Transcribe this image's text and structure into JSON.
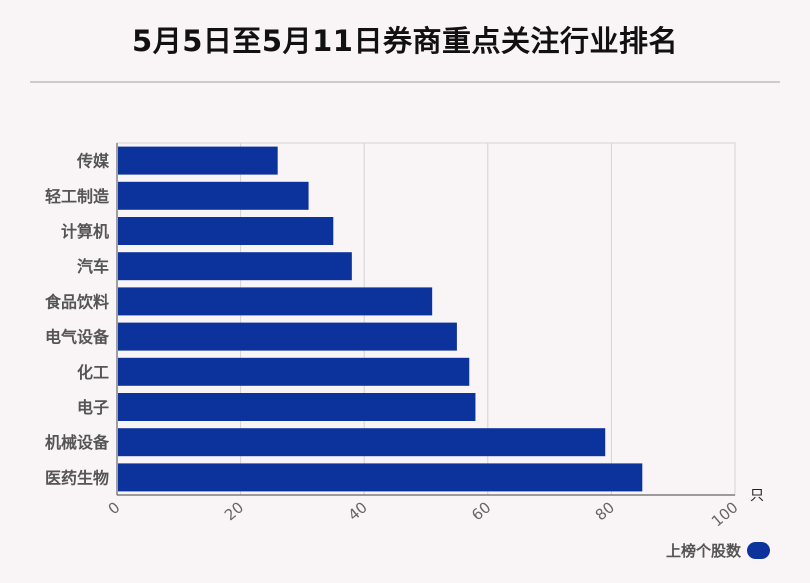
{
  "title": "5月5日至5月11日券商重点关注行业排名",
  "chart_data": {
    "type": "bar",
    "orientation": "horizontal",
    "categories": [
      "传媒",
      "轻工制造",
      "计算机",
      "汽车",
      "食品饮料",
      "电气设备",
      "化工",
      "电子",
      "机械设备",
      "医药生物"
    ],
    "series": [
      {
        "name": "上榜个股数",
        "values": [
          26,
          31,
          35,
          38,
          51,
          55,
          57,
          58,
          79,
          85
        ]
      }
    ],
    "xlim": [
      0,
      100
    ],
    "xticks": [
      "0",
      "20",
      "40",
      "60",
      "80",
      "100"
    ],
    "x_unit": "只",
    "grid": true,
    "legend_position": "bottom-right",
    "bar_color": "#0c339c"
  }
}
